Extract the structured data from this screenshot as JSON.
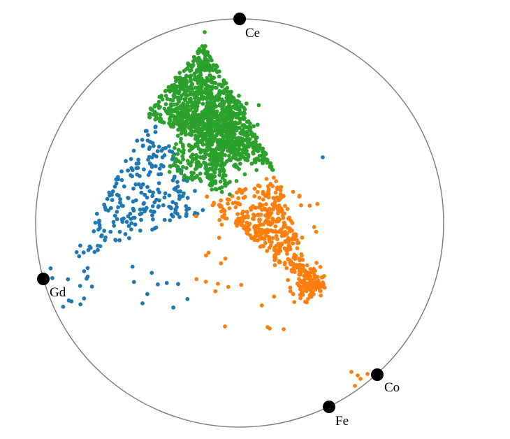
{
  "chart_data": {
    "type": "scatter",
    "title": "",
    "grid": false,
    "legend": "none",
    "anchors": [
      {
        "label": "Ce",
        "angle_deg": 90
      },
      {
        "label": "Gd",
        "angle_deg": 188
      },
      {
        "label": "Co",
        "angle_deg": -42
      },
      {
        "label": "Fe",
        "angle_deg": -60
      }
    ],
    "series": [
      {
        "color": "#2ca02c",
        "count": 1400
      },
      {
        "color": "#ff7f0e",
        "count": 520
      },
      {
        "color": "#1f77b4",
        "count": 260
      }
    ],
    "colors": {
      "circle": "#808080",
      "anchor": "#000000"
    }
  }
}
